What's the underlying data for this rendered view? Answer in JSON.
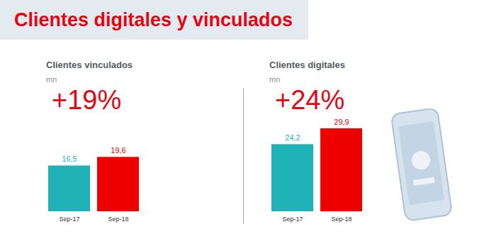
{
  "header": {
    "title": "Clientes digitales y vinculados"
  },
  "chart_data": [
    {
      "type": "bar",
      "title": "Clientes vinculados",
      "subtitle": "mn",
      "annotations": [
        "+19%"
      ],
      "categories": [
        "Sep-17",
        "Sep-18"
      ],
      "values": [
        16.5,
        19.6
      ],
      "value_labels": [
        "16,5",
        "19,6"
      ],
      "colors": [
        "#1fb3b8",
        "#ec0000"
      ],
      "data_labels": true,
      "tick_labels": "x"
    },
    {
      "type": "bar",
      "title": "Clientes digitales",
      "subtitle": "mn",
      "annotations": [
        "+24%"
      ],
      "categories": [
        "Sep-17",
        "Sep-18"
      ],
      "values": [
        24.2,
        29.9
      ],
      "value_labels": [
        "24,2",
        "29,9"
      ],
      "colors": [
        "#1fb3b8",
        "#ec0000"
      ],
      "data_labels": true,
      "tick_labels": "x"
    }
  ]
}
